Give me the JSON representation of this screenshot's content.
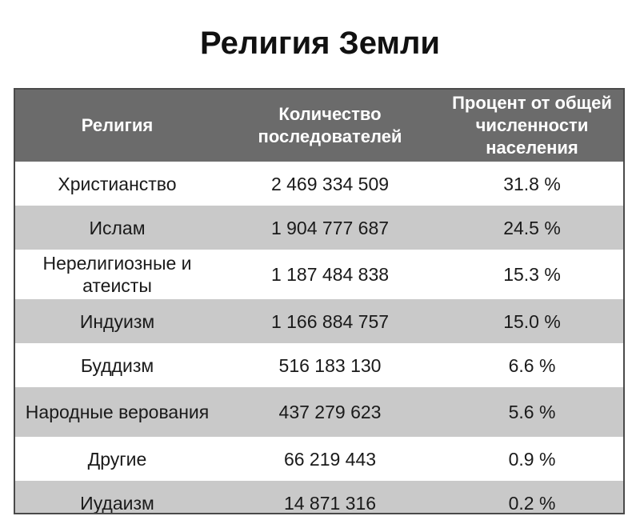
{
  "title": "Религия Земли",
  "table": {
    "headers": [
      "Религия",
      "Количество последователей",
      "Процент от общей численности населения"
    ],
    "rows": [
      {
        "religion": "Христианство",
        "followers": "2 469 334 509",
        "percent": "31.8 %"
      },
      {
        "religion": "Ислам",
        "followers": "1 904 777 687",
        "percent": "24.5 %"
      },
      {
        "religion": "Нерелигиозные и атеисты",
        "followers": "1 187 484 838",
        "percent": "15.3 %"
      },
      {
        "religion": "Индуизм",
        "followers": "1 166 884 757",
        "percent": "15.0 %"
      },
      {
        "religion": "Буддизм",
        "followers": "516 183 130",
        "percent": "6.6 %"
      },
      {
        "religion": "Народные верования",
        "followers": "437 279 623",
        "percent": "5.6 %"
      },
      {
        "religion": "Другие",
        "followers": "66 219 443",
        "percent": "0.9 %"
      },
      {
        "religion": "Иудаизм",
        "followers": "14 871 316",
        "percent": "0.2 %"
      }
    ]
  }
}
